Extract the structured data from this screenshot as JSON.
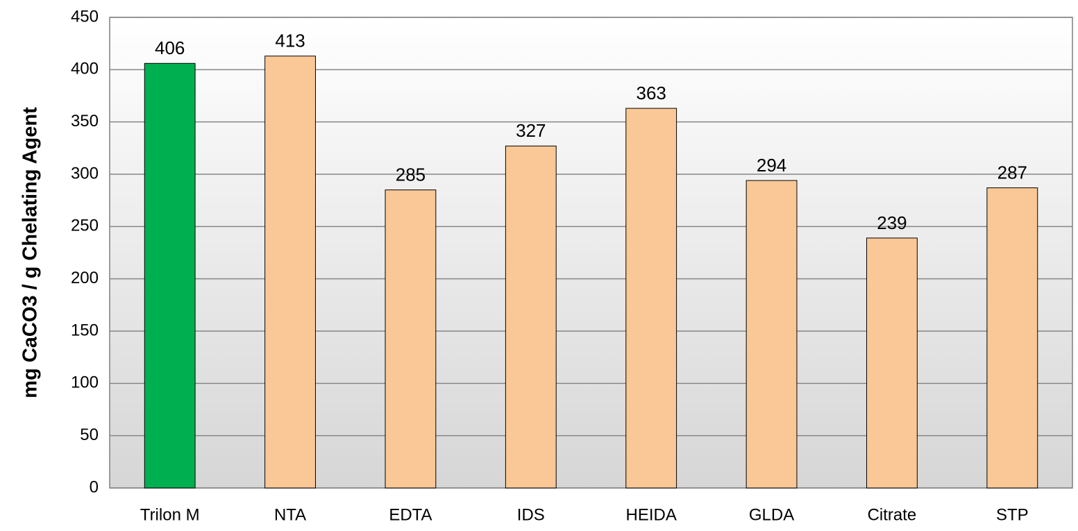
{
  "chart_data": {
    "type": "bar",
    "y_label": "mg CaCO3 / g Chelating Agent",
    "categories": [
      "Trilon M",
      "NTA",
      "EDTA",
      "IDS",
      "HEIDA",
      "GLDA",
      "Citrate",
      "STP"
    ],
    "values": [
      406,
      413,
      285,
      327,
      363,
      294,
      239,
      287
    ],
    "colors": [
      "#00b050",
      "#fac896",
      "#fac896",
      "#fac896",
      "#fac896",
      "#fac896",
      "#fac896",
      "#fac896"
    ],
    "ylim": [
      0,
      450
    ],
    "yticks": [
      0,
      50,
      100,
      150,
      200,
      250,
      300,
      350,
      400,
      450
    ],
    "grid": true
  }
}
